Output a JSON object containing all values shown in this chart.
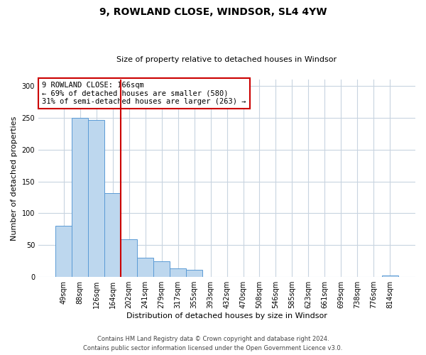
{
  "title": "9, ROWLAND CLOSE, WINDSOR, SL4 4YW",
  "subtitle": "Size of property relative to detached houses in Windsor",
  "xlabel": "Distribution of detached houses by size in Windsor",
  "ylabel": "Number of detached properties",
  "categories": [
    "49sqm",
    "88sqm",
    "126sqm",
    "164sqm",
    "202sqm",
    "241sqm",
    "279sqm",
    "317sqm",
    "355sqm",
    "393sqm",
    "432sqm",
    "470sqm",
    "508sqm",
    "546sqm",
    "585sqm",
    "623sqm",
    "661sqm",
    "699sqm",
    "738sqm",
    "776sqm",
    "814sqm"
  ],
  "values": [
    80,
    250,
    247,
    132,
    59,
    30,
    25,
    14,
    11,
    0,
    0,
    0,
    0,
    0,
    0,
    0,
    0,
    0,
    0,
    0,
    2
  ],
  "bar_color": "#bdd7ee",
  "bar_edge_color": "#5b9bd5",
  "annotation_line_color": "#cc0000",
  "annotation_box_text": "9 ROWLAND CLOSE: 166sqm\n← 69% of detached houses are smaller (580)\n31% of semi-detached houses are larger (263) →",
  "annotation_box_edge_color": "#cc0000",
  "ylim": [
    0,
    310
  ],
  "yticks": [
    0,
    50,
    100,
    150,
    200,
    250,
    300
  ],
  "footer_line1": "Contains HM Land Registry data © Crown copyright and database right 2024.",
  "footer_line2": "Contains public sector information licensed under the Open Government Licence v3.0.",
  "background_color": "#ffffff",
  "grid_color": "#c8d4e0",
  "title_fontsize": 10,
  "subtitle_fontsize": 8,
  "tick_fontsize": 7,
  "label_fontsize": 8,
  "footer_fontsize": 6
}
